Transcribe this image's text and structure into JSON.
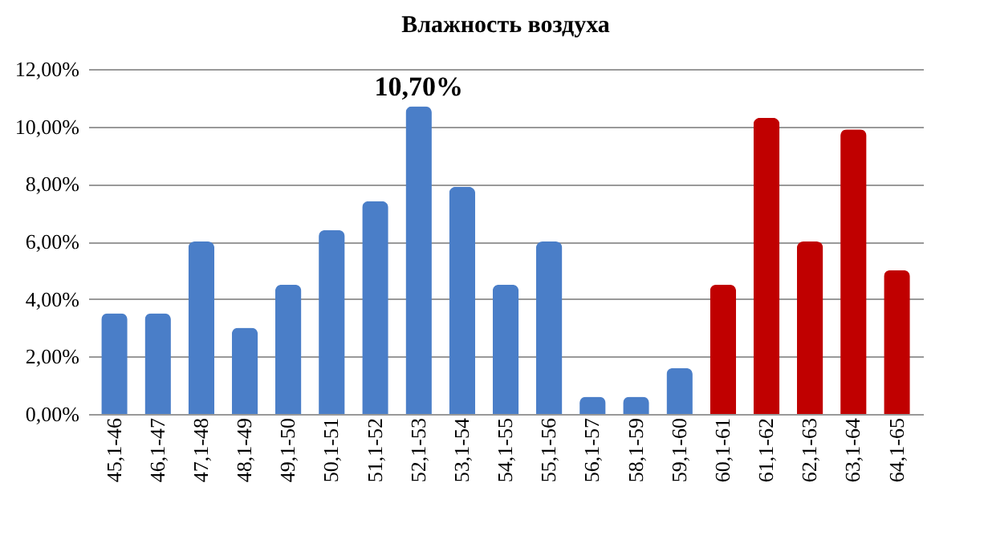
{
  "chart_data": {
    "type": "bar",
    "title": "Влажность воздуха",
    "categories": [
      "45,1-46",
      "46,1-47",
      "47,1-48",
      "48,1-49",
      "49,1-50",
      "50,1-51",
      "51,1-52",
      "52,1-53",
      "53,1-54",
      "54,1-55",
      "55,1-56",
      "56,1-57",
      "58,1-59",
      "59,1-60",
      "60,1-61",
      "61,1-62",
      "62,1-63",
      "63,1-64",
      "64,1-65"
    ],
    "values": [
      3.5,
      3.5,
      6.0,
      3.0,
      4.5,
      6.4,
      7.4,
      10.7,
      7.9,
      4.5,
      6.0,
      0.6,
      0.6,
      1.6,
      4.5,
      10.3,
      6.0,
      9.9,
      5.0
    ],
    "colors": [
      "#4a7ec8",
      "#4a7ec8",
      "#4a7ec8",
      "#4a7ec8",
      "#4a7ec8",
      "#4a7ec8",
      "#4a7ec8",
      "#4a7ec8",
      "#4a7ec8",
      "#4a7ec8",
      "#4a7ec8",
      "#4a7ec8",
      "#4a7ec8",
      "#4a7ec8",
      "#c00000",
      "#c00000",
      "#c00000",
      "#c00000",
      "#c00000"
    ],
    "value_labels": [
      null,
      null,
      null,
      null,
      null,
      null,
      null,
      "10,70%",
      null,
      null,
      null,
      null,
      null,
      null,
      null,
      null,
      null,
      null,
      null
    ],
    "ylim": [
      0,
      12
    ],
    "yticks": [
      {
        "value": 0,
        "label": "0,00%"
      },
      {
        "value": 2,
        "label": "2,00%"
      },
      {
        "value": 4,
        "label": "4,00%"
      },
      {
        "value": 6,
        "label": "6,00%"
      },
      {
        "value": 8,
        "label": "8,00%"
      },
      {
        "value": 10,
        "label": "10,00%"
      },
      {
        "value": 12,
        "label": "12,00%"
      }
    ],
    "grid": "y"
  }
}
